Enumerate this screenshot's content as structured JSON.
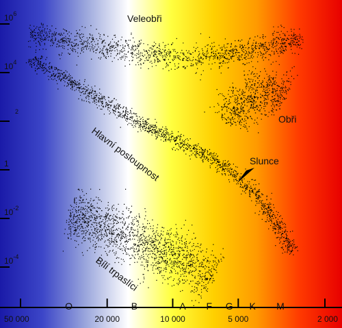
{
  "chart_data": {
    "type": "scatter",
    "title": "",
    "xlabel": "",
    "ylabel": "",
    "x_scale": "log-reversed",
    "y_scale": "log",
    "xlim": [
      50000,
      2000
    ],
    "ylim": [
      1e-05,
      1000000
    ],
    "x_ticks": [
      {
        "value": 50000,
        "label": "50 000"
      },
      {
        "value": 20000,
        "label": "20 000"
      },
      {
        "value": 10000,
        "label": "10 000"
      },
      {
        "value": 5000,
        "label": "5 000"
      },
      {
        "value": 2000,
        "label": "2 000"
      }
    ],
    "y_ticks": [
      {
        "value": 1000000,
        "base": "10",
        "exp": "6"
      },
      {
        "value": 10000,
        "base": "10",
        "exp": "4"
      },
      {
        "value": 100,
        "base": "",
        "exp": "2"
      },
      {
        "value": 1,
        "base": "1",
        "exp": ""
      },
      {
        "value": 0.01,
        "base": "10",
        "exp": "-2"
      },
      {
        "value": 0.0001,
        "base": "10",
        "exp": "-4"
      }
    ],
    "spectral_classes": [
      {
        "label": "O",
        "temperature": 30000
      },
      {
        "label": "B",
        "temperature": 15000
      },
      {
        "label": "A",
        "temperature": 9000
      },
      {
        "label": "F",
        "temperature": 6800
      },
      {
        "label": "G",
        "temperature": 5500
      },
      {
        "label": "K",
        "temperature": 4300
      },
      {
        "label": "M",
        "temperature": 3200
      }
    ],
    "background_gradient": [
      "#1a1aa8",
      "#3c46c8",
      "#9aa6dc",
      "#ffffff",
      "#ffff40",
      "#ffd000",
      "#ff9a00",
      "#ff3a00",
      "#e80000"
    ],
    "point_color": "#000000",
    "regions": [
      {
        "name": "Veleobři",
        "points": [
          [
            45000,
            300000
          ],
          [
            30000,
            150000
          ],
          [
            20000,
            80000
          ],
          [
            12000,
            40000
          ],
          [
            8000,
            30000
          ],
          [
            5000,
            50000
          ],
          [
            3500,
            100000
          ],
          [
            2600,
            200000
          ]
        ]
      },
      {
        "name": "Hlavní posloupnost",
        "points": [
          [
            45000,
            30000
          ],
          [
            30000,
            3000
          ],
          [
            20000,
            400
          ],
          [
            14000,
            60
          ],
          [
            10000,
            15
          ],
          [
            8000,
            5
          ],
          [
            6500,
            2
          ],
          [
            5800,
            1
          ],
          [
            5000,
            0.3
          ],
          [
            4000,
            0.05
          ],
          [
            3400,
            0.005
          ],
          [
            2800,
            0.0003
          ]
        ]
      },
      {
        "name": "Obři",
        "points": [
          [
            5500,
            60
          ],
          [
            5000,
            250
          ],
          [
            4500,
            1000
          ],
          [
            3800,
            1500
          ],
          [
            3300,
            1500
          ],
          [
            3000,
            1000
          ]
        ]
      },
      {
        "name": "Bílí trpaslíci",
        "points": [
          [
            30000,
            0.01
          ],
          [
            22000,
            0.005
          ],
          [
            15000,
            0.001
          ],
          [
            11000,
            0.0003
          ],
          [
            8500,
            0.0001
          ],
          [
            6500,
            3e-05
          ]
        ]
      }
    ],
    "labels": {
      "supergiants": "Veleobři",
      "main_sequence": "Hlavní posloupnost",
      "giants": "Obři",
      "white_dwarfs": "Bílí trpaslíci",
      "sun": "Slunce"
    },
    "sun": {
      "temperature": 5800,
      "luminosity": 1
    }
  }
}
